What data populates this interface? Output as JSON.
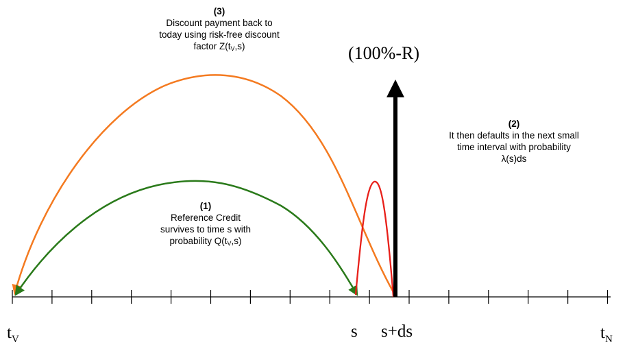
{
  "payoff_label": "(100%-R)",
  "note_discount": {
    "number": "(3)",
    "line1": "Discount payment back to",
    "line2": "today using risk-free discount",
    "line3_pre": "factor Z(t",
    "line3_sub": "V",
    "line3_post": ",s)"
  },
  "note_default": {
    "number": "(2)",
    "line1": "It then defaults in the next small",
    "line2": "time interval with probability",
    "line3": "λ(s)ds"
  },
  "note_survive": {
    "number": "(1)",
    "line1": "Reference Credit",
    "line2": "survives to time s with",
    "line3_pre": "probability Q(t",
    "line3_sub": "V",
    "line3_post": ",s)"
  },
  "axis_labels": {
    "tv_main": "t",
    "tv_sub": "V",
    "s": "s",
    "s_ds": "s+ds",
    "tn_main": "t",
    "tn_sub": "N"
  },
  "colors": {
    "discount_arc": "#f47a20",
    "survival_arc": "#2a7a1a",
    "default_density": "#e8201a",
    "payment_arrow": "#000000",
    "axis": "#000000"
  }
}
